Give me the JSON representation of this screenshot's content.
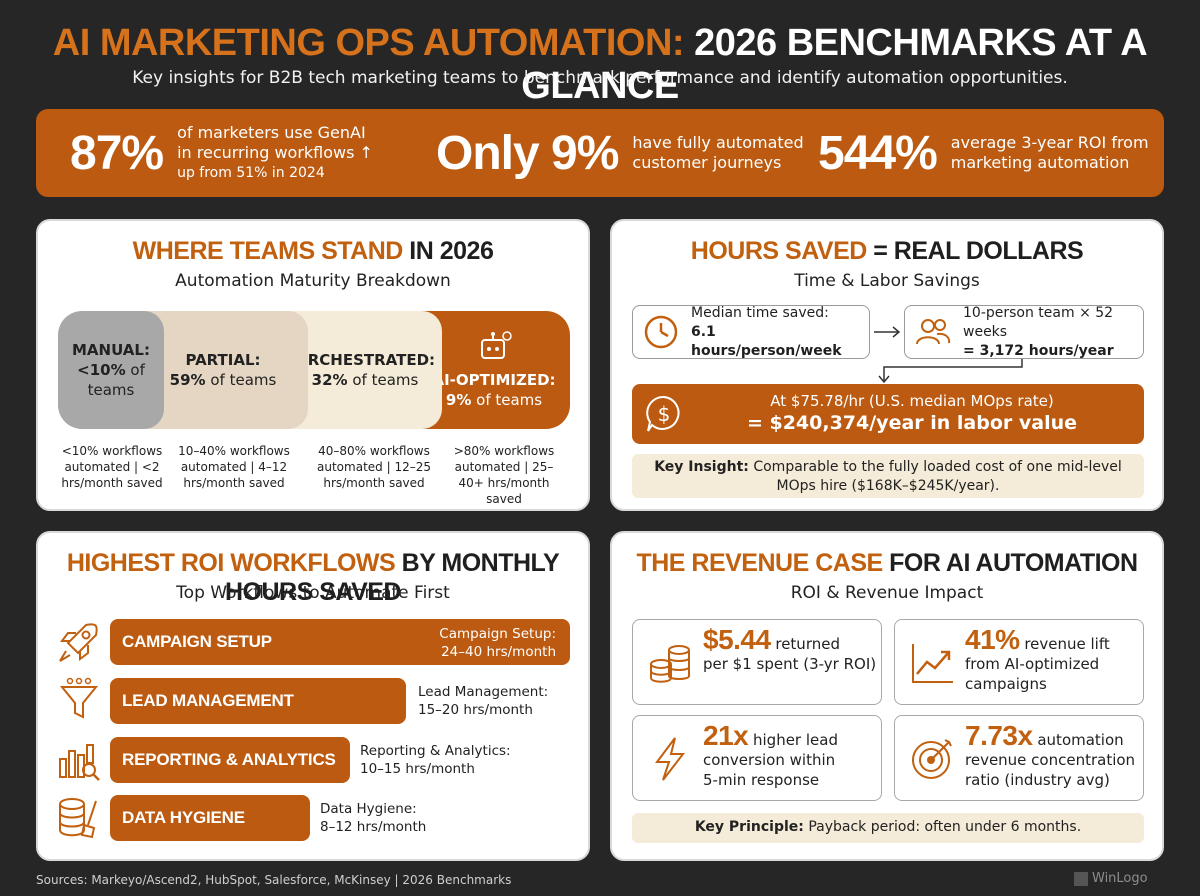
{
  "header": {
    "title_part1": "AI MARKETING OPS AUTOMATION:",
    "title_part2": "2026 BENCHMARKS AT A GLANCE",
    "subtitle": "Key insights for B2B tech marketing teams to benchmark performance and identify automation opportunities."
  },
  "banner": {
    "stats": [
      {
        "value": "87%",
        "line1": "of marketers use GenAI",
        "line2": "in recurring workflows ↑",
        "line3": "up from 51% in 2024"
      },
      {
        "value": "Only 9%",
        "line1": "have fully automated",
        "line2": "customer journeys"
      },
      {
        "value": "544%",
        "line1": "average 3-year ROI from",
        "line2": "marketing automation"
      }
    ]
  },
  "maturity": {
    "title_orange": "WHERE TEAMS STAND",
    "title_dark": "IN 2026",
    "subtitle": "Automation Maturity Breakdown",
    "levels": [
      {
        "name": "MANUAL:",
        "share": "<10%",
        "share_suffix": "of",
        "line3": "teams",
        "note": "<10% workflows automated | <2 hrs/month saved"
      },
      {
        "name": "PARTIAL:",
        "share": "59%",
        "share_suffix": "of teams",
        "note": "10–40% workflows automated | 4–12 hrs/month saved"
      },
      {
        "name": "ORCHESTRATED:",
        "share": "32%",
        "share_suffix": "of teams",
        "note": "40–80% workflows automated | 12–25 hrs/month saved"
      },
      {
        "name": "AI-OPTIMIZED:",
        "share": "9%",
        "share_suffix": "of teams",
        "note": ">80% workflows automated | 25–40+ hrs/month saved"
      }
    ],
    "colors": {
      "manual": "#a8a8a8",
      "partial": "#e5d6c4",
      "orchestrated": "#f4ebd8",
      "ai": "#bb5a10"
    }
  },
  "hours": {
    "title_orange": "HOURS SAVED",
    "title_dark": "= REAL DOLLARS",
    "subtitle": "Time & Labor Savings",
    "median_label": "Median time saved:",
    "median_value": "6.1 hours/person/week",
    "team_label": "10-person team × 52 weeks",
    "team_value": "= 3,172 hours/year",
    "rate_line": "At $75.78/hr (U.S. median MOps rate)",
    "value_line": "= $240,374/year in labor value",
    "insight_bold": "Key Insight:",
    "insight_text": "Comparable to the fully loaded cost of one mid-level MOps hire ($168K–$245K/year)."
  },
  "workflows": {
    "title_orange": "HIGHEST ROI WORKFLOWS",
    "title_dark": "BY MONTHLY HOURS SAVED",
    "subtitle": "Top Workflows to Automate First",
    "items": [
      {
        "name": "CAMPAIGN SETUP",
        "label1": "Campaign Setup:",
        "label2": "24–40 hrs/month",
        "icon": "rocket-icon"
      },
      {
        "name": "LEAD MANAGEMENT",
        "label1": "Lead Management:",
        "label2": "15–20 hrs/month",
        "icon": "funnel-icon"
      },
      {
        "name": "REPORTING & ANALYTICS",
        "label1": "Reporting & Analytics:",
        "label2": "10–15 hrs/month",
        "icon": "chart-search-icon"
      },
      {
        "name": "DATA HYGIENE",
        "label1": "Data Hygiene:",
        "label2": "8–12 hrs/month",
        "icon": "database-brush-icon"
      }
    ]
  },
  "revenue": {
    "title_orange": "THE REVENUE CASE",
    "title_dark": "FOR AI AUTOMATION",
    "subtitle": "ROI & Revenue Impact",
    "cards": [
      {
        "value": "$5.44",
        "text1": "returned",
        "text2": "per $1 spent (3-yr ROI)",
        "icon": "coins-icon"
      },
      {
        "value": "41%",
        "text1": "revenue lift",
        "text2": "from AI-optimized",
        "text3": "campaigns",
        "icon": "trend-chart-icon"
      },
      {
        "value": "21x",
        "text1": "higher lead",
        "text2": "conversion within",
        "text3": "5-min response",
        "icon": "lightning-icon"
      },
      {
        "value": "7.73x",
        "text1": "automation",
        "text2": "revenue concentration",
        "text3": "ratio (industry avg)",
        "icon": "target-icon"
      }
    ],
    "principle_bold": "Key Principle:",
    "principle_text": "Payback period: often under 6 months."
  },
  "footer": {
    "sources": "Sources: Markeyo/Ascend2, HubSpot, Salesforce, McKinsey | 2026 Benchmarks",
    "logo": "WinLogo"
  }
}
